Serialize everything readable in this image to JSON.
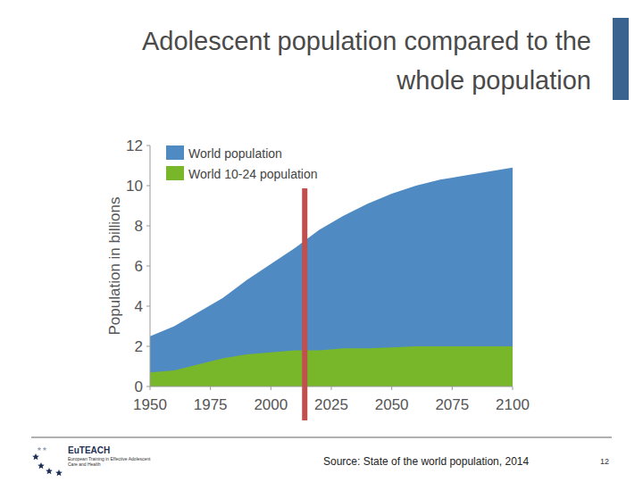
{
  "slide": {
    "title": [
      "Adolescent population compared  to the",
      "whole population"
    ],
    "source": "Source: State of the world population, 2014",
    "page_number": "12",
    "logo": {
      "name": "EuTEACH",
      "subtitle": [
        "European Training in Effective Adolescent",
        "Care and Health"
      ]
    }
  },
  "chart_data": {
    "type": "area",
    "stacked": false,
    "y_label": "Population in billions",
    "x": [
      1950,
      1960,
      1970,
      1980,
      1990,
      2000,
      2010,
      2020,
      2030,
      2040,
      2050,
      2060,
      2070,
      2080,
      2090,
      2100
    ],
    "series": [
      {
        "name": "World population",
        "color": "#4f8ac2",
        "values": [
          2.5,
          3.0,
          3.7,
          4.4,
          5.3,
          6.1,
          6.9,
          7.8,
          8.5,
          9.1,
          9.6,
          10.0,
          10.3,
          10.5,
          10.7,
          10.9
        ]
      },
      {
        "name": "World 10-24 population",
        "color": "#79b72a",
        "values": [
          0.7,
          0.8,
          1.1,
          1.4,
          1.6,
          1.7,
          1.8,
          1.8,
          1.9,
          1.9,
          1.95,
          2.0,
          2.0,
          2.0,
          2.0,
          2.0
        ]
      }
    ],
    "xlim": [
      1950,
      2100
    ],
    "xticks": [
      1950,
      1975,
      2000,
      2025,
      2050,
      2075,
      2100
    ],
    "ylim": [
      0,
      12
    ],
    "yticks": [
      0,
      2,
      4,
      6,
      8,
      10,
      12
    ],
    "grid": false,
    "legend": "top-left",
    "reference_line": {
      "x": 2014,
      "color": "#c0504d"
    }
  }
}
